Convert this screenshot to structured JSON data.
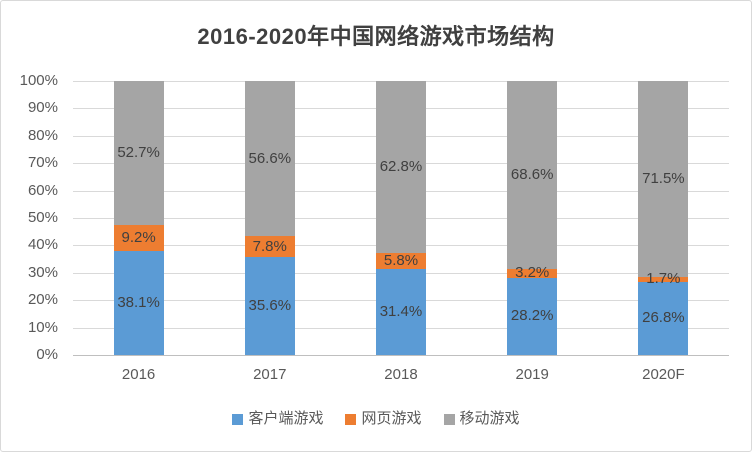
{
  "chart_data": {
    "type": "bar",
    "stacked": true,
    "title": "2016-2020年中国网络游戏市场结构",
    "categories": [
      "2016",
      "2017",
      "2018",
      "2019",
      "2020F"
    ],
    "series": [
      {
        "name": "客户端游戏",
        "color": "#5B9BD5",
        "values": [
          38.1,
          35.6,
          31.4,
          28.2,
          26.8
        ]
      },
      {
        "name": "网页游戏",
        "color": "#ED7D31",
        "values": [
          9.2,
          7.8,
          5.8,
          3.2,
          1.7
        ]
      },
      {
        "name": "移动游戏",
        "color": "#A5A5A5",
        "values": [
          52.7,
          56.6,
          62.8,
          68.6,
          71.5
        ]
      }
    ],
    "data_labels": true,
    "data_label_suffix": "%",
    "ylim": [
      0,
      100
    ],
    "yticks": [
      "0%",
      "10%",
      "20%",
      "30%",
      "40%",
      "50%",
      "60%",
      "70%",
      "80%",
      "90%",
      "100%"
    ],
    "grid": true,
    "legend_position": "bottom",
    "colors": {
      "title": "#404040",
      "tick_label": "#595959",
      "data_label": "#404040",
      "gridline": "#D9D9D9",
      "axis_line": "#BFBFBF",
      "card_border": "#D9D9D9"
    }
  }
}
